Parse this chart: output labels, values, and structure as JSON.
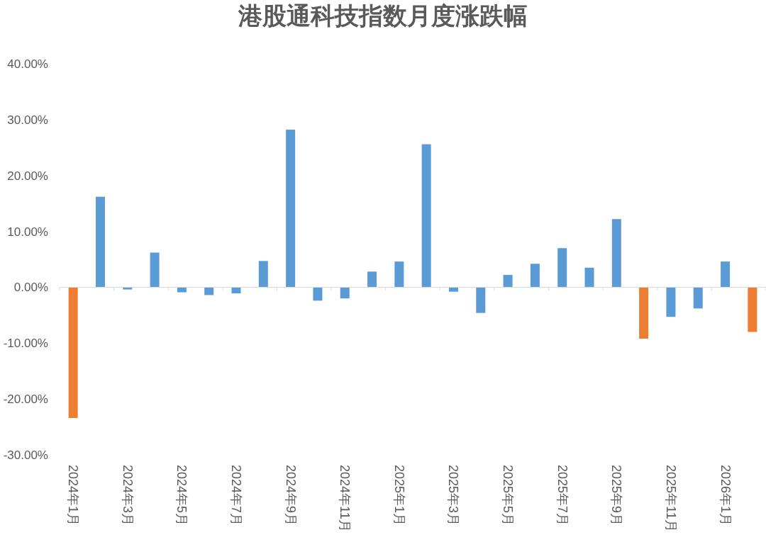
{
  "chart_data": {
    "type": "bar",
    "title": "港股通科技指数月度涨跌幅",
    "categories": [
      "2024年1月",
      null,
      "2024年3月",
      null,
      "2024年5月",
      null,
      "2024年7月",
      null,
      "2024年9月",
      null,
      "2024年11月",
      null,
      "2025年1月",
      null,
      "2025年3月",
      null,
      "2025年5月",
      null,
      "2025年7月",
      null,
      "2025年9月",
      null,
      "2025年11月",
      null,
      "2026年1月",
      null
    ],
    "values": [
      -23.4,
      16.2,
      -0.4,
      6.2,
      -0.9,
      -1.4,
      -1.1,
      4.7,
      28.2,
      -2.4,
      -2.0,
      2.8,
      4.6,
      25.6,
      -0.8,
      -4.6,
      2.2,
      4.2,
      7.0,
      3.5,
      12.2,
      -9.2,
      -5.3,
      -3.8,
      4.6,
      -8.0
    ],
    "colors": [
      "#ed7d31",
      "#5b9bd5",
      "#5b9bd5",
      "#5b9bd5",
      "#5b9bd5",
      "#5b9bd5",
      "#5b9bd5",
      "#5b9bd5",
      "#5b9bd5",
      "#5b9bd5",
      "#5b9bd5",
      "#5b9bd5",
      "#5b9bd5",
      "#5b9bd5",
      "#5b9bd5",
      "#5b9bd5",
      "#5b9bd5",
      "#5b9bd5",
      "#5b9bd5",
      "#5b9bd5",
      "#5b9bd5",
      "#ed7d31",
      "#5b9bd5",
      "#5b9bd5",
      "#5b9bd5",
      "#ed7d31"
    ],
    "ylim": [
      -30,
      40
    ],
    "yticks": [
      {
        "value": -30,
        "label": "-30.00%"
      },
      {
        "value": -20,
        "label": "-20.00%"
      },
      {
        "value": -10,
        "label": "-10.00%"
      },
      {
        "value": 0,
        "label": "0.00%"
      },
      {
        "value": 10,
        "label": "10.00%"
      },
      {
        "value": 20,
        "label": "20.00%"
      },
      {
        "value": 30,
        "label": "30.00%"
      },
      {
        "value": 40,
        "label": "40.00%"
      }
    ],
    "orientation": "vertical"
  }
}
